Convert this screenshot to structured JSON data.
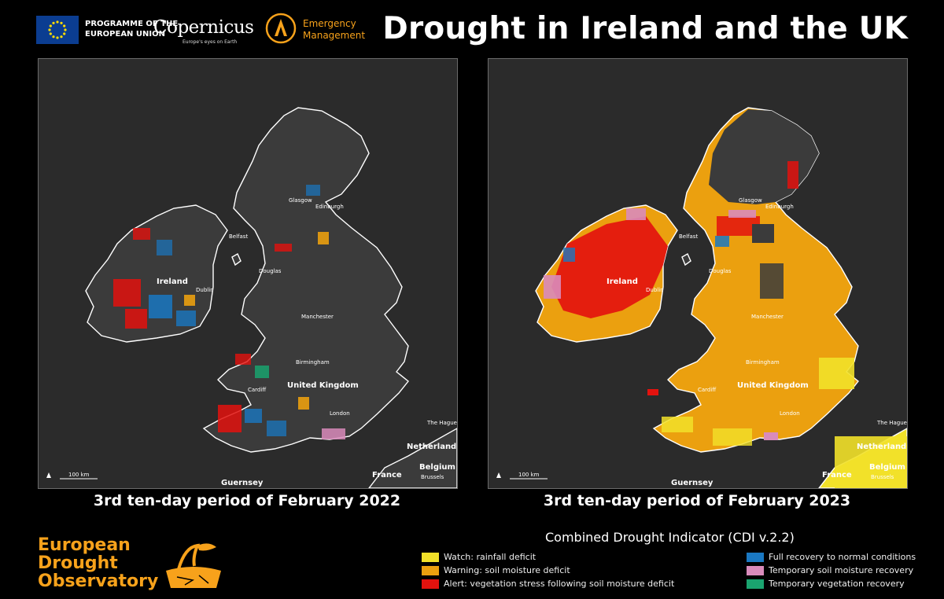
{
  "header": {
    "eu_programme": [
      "PROGRAMME OF THE",
      "EUROPEAN UNION"
    ],
    "copernicus_name": "Copernicus",
    "copernicus_tagline": "Europe's eyes on Earth",
    "ems_name": [
      "Emergency",
      "Management"
    ],
    "title": "Drought in Ireland and the UK"
  },
  "maps": [
    {
      "caption": "3rd ten-day period of February 2022",
      "scale_bar": "100 km",
      "labels": {
        "ireland": "Ireland",
        "uk": "United Kingdom",
        "glasgow": "Glasgow",
        "edinburgh": "Edinburgh",
        "belfast": "Belfast",
        "douglas": "Douglas",
        "manchester": "Manchester",
        "dublin": "Dublin",
        "birmingham": "Birmingham",
        "cardiff": "Cardiff",
        "london": "London",
        "the_hague": "The Hague",
        "netherlands": "Netherlands",
        "belgium": "Belgium",
        "brussels": "Brussels",
        "france": "France",
        "guernsey": "Guernsey"
      }
    },
    {
      "caption": "3rd ten-day period of February 2023",
      "scale_bar": "100 km",
      "labels": {
        "ireland": "Ireland",
        "uk": "United Kingdom",
        "glasgow": "Glasgow",
        "edinburgh": "Edinburgh",
        "belfast": "Belfast",
        "douglas": "Douglas",
        "manchester": "Manchester",
        "dublin": "Dublin",
        "birmingham": "Birmingham",
        "cardiff": "Cardiff",
        "london": "London",
        "the_hague": "The Hague",
        "netherlands": "Netherlands",
        "belgium": "Belgium",
        "brussels": "Brussels",
        "france": "France",
        "guernsey": "Guernsey"
      }
    }
  ],
  "edo": [
    "European",
    "Drought",
    "Observatory"
  ],
  "legend": {
    "title": "Combined Drought Indicator (CDI v.2.2)",
    "items": [
      {
        "label": "Watch: rainfall deficit",
        "color": "#f2e129"
      },
      {
        "label": "Warning: soil moisture deficit",
        "color": "#eba00f"
      },
      {
        "label": "Alert: vegetation stress following soil moisture deficit",
        "color": "#e3120e"
      },
      {
        "label": "Full recovery to normal conditions",
        "color": "#1a78c2"
      },
      {
        "label": "Temporary soil moisture recovery",
        "color": "#d98bbb"
      },
      {
        "label": "Temporary vegetation recovery",
        "color": "#1aa36f"
      }
    ]
  }
}
